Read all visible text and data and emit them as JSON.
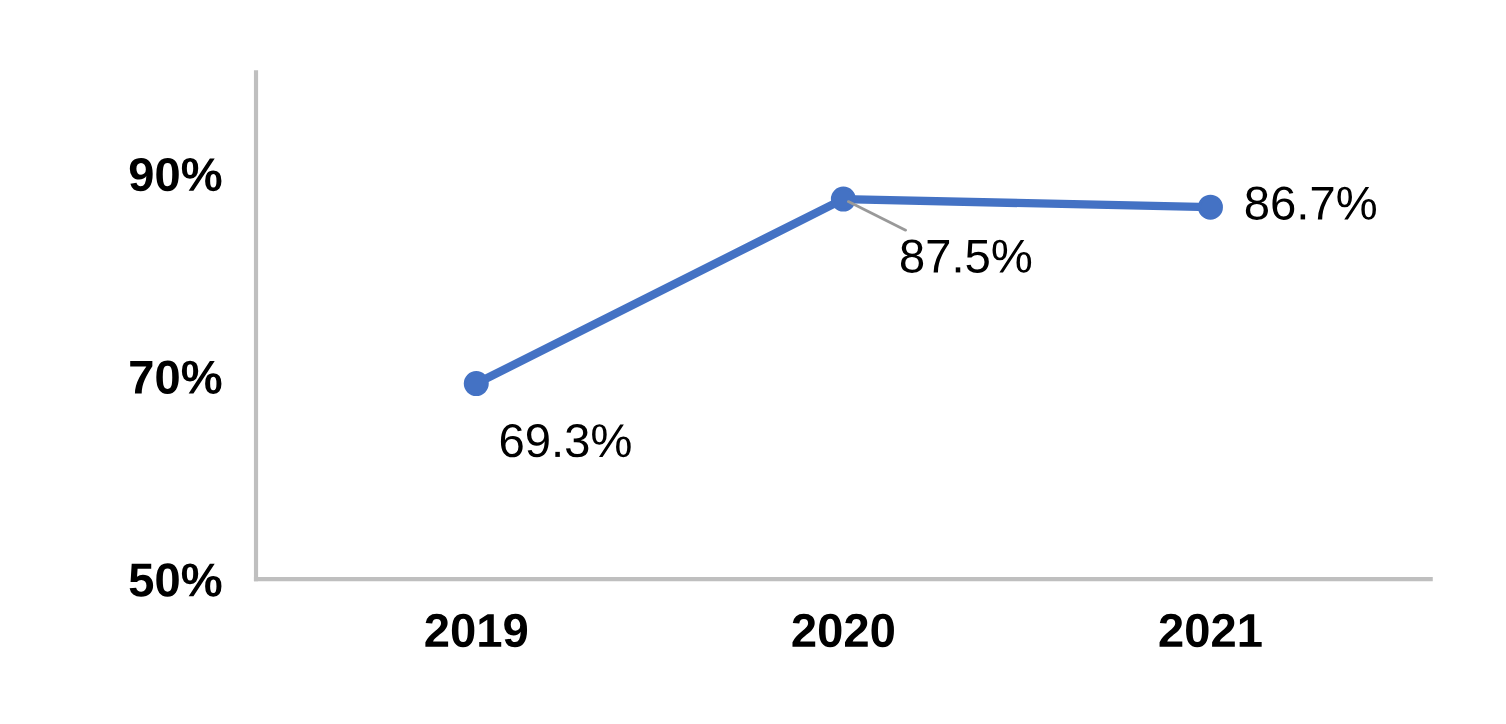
{
  "chart_data": {
    "type": "line",
    "categories": [
      "2019",
      "2020",
      "2021"
    ],
    "series": [
      {
        "color": "#4472c4",
        "values": [
          69.3,
          87.5,
          86.7
        ],
        "value_labels": [
          "69.3%",
          "87.5%",
          "86.7%"
        ]
      }
    ],
    "ylim": [
      50,
      100
    ],
    "yticks": [
      {
        "value": 50,
        "label": "50%"
      },
      {
        "value": 70,
        "label": "70%"
      },
      {
        "value": 90,
        "label": "90%"
      }
    ],
    "marker": "circle",
    "line_style": "solid",
    "grid": false,
    "legend": false
  }
}
